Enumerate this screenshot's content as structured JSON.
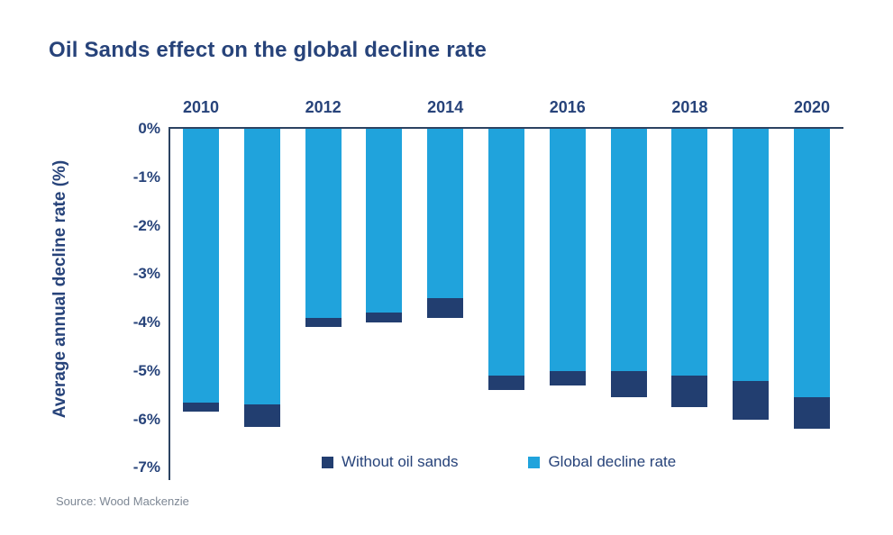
{
  "title": "Oil Sands effect on the global decline rate",
  "y_axis_title": "Average annual decline rate (%)",
  "source_note": "Source: Wood Mackenzie",
  "colors": {
    "light_blue": "#20A3DC",
    "navy": "#223E70",
    "text_navy": "#27437A",
    "axis_line": "#2C4362",
    "source_gray": "#7D8794",
    "background": "#FFFFFF"
  },
  "chart_data": {
    "type": "bar",
    "stacked": true,
    "title": "Oil Sands effect on the global decline rate",
    "xlabel": "",
    "ylabel": "Average annual decline rate (%)",
    "unit": "%",
    "ylim": [
      -7,
      0
    ],
    "grid": false,
    "axis_orientation": "x-axis-labels-on-top",
    "categories": [
      "2010",
      "2011",
      "2012",
      "2013",
      "2014",
      "2015",
      "2016",
      "2017",
      "2018",
      "2019",
      "2020"
    ],
    "x_tick_labels_visible": [
      "2010",
      "2012",
      "2014",
      "2016",
      "2018",
      "2020"
    ],
    "y_tick_labels": [
      "0%",
      "-1%",
      "-2%",
      "-3%",
      "-4%",
      "-5%",
      "-6%",
      "-7%"
    ],
    "series": [
      {
        "name": "Global decline rate",
        "color": "#20A3DC",
        "values": [
          -5.65,
          -5.7,
          -3.9,
          -3.8,
          -3.5,
          -5.1,
          -5.0,
          -5.0,
          -5.1,
          -5.2,
          -5.55
        ]
      },
      {
        "name": "Without oil sands",
        "color": "#223E70",
        "values": [
          -5.85,
          -6.15,
          -4.1,
          -4.0,
          -3.9,
          -5.4,
          -5.3,
          -5.55,
          -5.75,
          -6.0,
          -6.2
        ]
      }
    ],
    "legend": [
      {
        "label": "Without oil sands",
        "color": "#223E70"
      },
      {
        "label": "Global decline rate",
        "color": "#20A3DC"
      }
    ],
    "legend_position": "bottom"
  }
}
